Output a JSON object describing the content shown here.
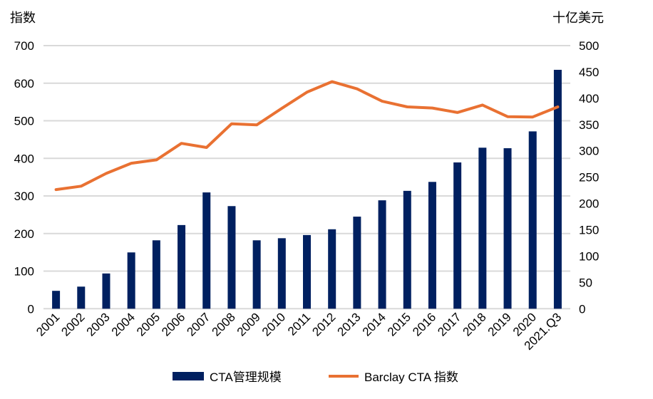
{
  "chart_data": {
    "type": "bar+line",
    "left_axis_label": "指数",
    "right_axis_label": "十亿美元",
    "left_ylim": [
      0,
      700
    ],
    "left_ticks": [
      "0",
      "100",
      "200",
      "300",
      "400",
      "500",
      "600",
      "700"
    ],
    "right_ylim": [
      0,
      500
    ],
    "right_ticks": [
      "0",
      "50",
      "100",
      "150",
      "200",
      "250",
      "300",
      "350",
      "400",
      "450",
      "500"
    ],
    "grid": true,
    "legend_position": "bottom",
    "categories": [
      "2001",
      "2002",
      "2003",
      "2004",
      "2005",
      "2006",
      "2007",
      "2008",
      "2009",
      "2010",
      "2011",
      "2012",
      "2013",
      "2014",
      "2015",
      "2016",
      "2017",
      "2018",
      "2019",
      "2020",
      "2021.Q3"
    ],
    "series": [
      {
        "name": "CTA管理规模",
        "type": "bar",
        "axis": "right",
        "color": "#002060",
        "values": [
          34,
          42,
          67,
          107,
          130,
          159,
          221,
          195,
          130,
          134,
          140,
          151,
          175,
          206,
          224,
          241,
          278,
          306,
          305,
          337,
          454
        ]
      },
      {
        "name": "Barclay CTA 指数",
        "type": "line",
        "axis": "left",
        "color": "#E97132",
        "values": [
          317,
          326,
          360,
          387,
          396,
          440,
          429,
          492,
          489,
          533,
          576,
          604,
          585,
          552,
          537,
          534,
          522,
          542,
          511,
          510,
          537
        ]
      }
    ]
  }
}
